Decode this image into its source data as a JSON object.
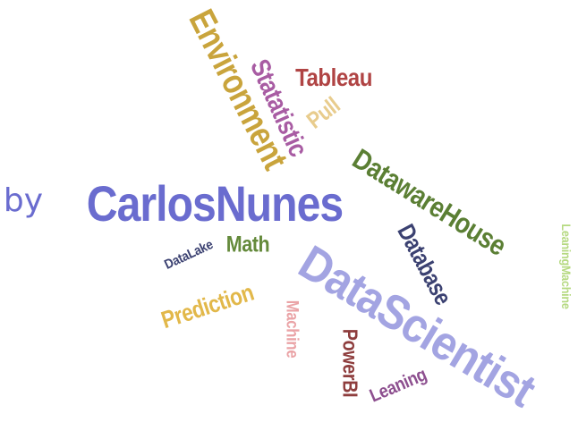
{
  "word_cloud": {
    "words": {
      "carlosnunes": {
        "text": "CarlosNunes",
        "color": "#6a6ccf"
      },
      "by": {
        "text": "by",
        "color": "#6a6ccf"
      },
      "datascientist": {
        "text": "DataScientist",
        "color": "#a3a4e2"
      },
      "environment": {
        "text": "Environment",
        "color": "#c9a43c"
      },
      "datawarehouse": {
        "text": "DatawareHouse",
        "color": "#5b7f34"
      },
      "statatistic": {
        "text": "Statatistic",
        "color": "#a85ca3"
      },
      "tableau": {
        "text": "Tableau",
        "color": "#b04444"
      },
      "pull": {
        "text": "Pull",
        "color": "#e8cc8d"
      },
      "database": {
        "text": "Database",
        "color": "#3b4171"
      },
      "math": {
        "text": "Math",
        "color": "#648a3b"
      },
      "datalake": {
        "text": "DataLake",
        "color": "#3b4171"
      },
      "prediction": {
        "text": "Prediction",
        "color": "#e2b84a"
      },
      "machine": {
        "text": "Machine",
        "color": "#eaa3a6"
      },
      "powerbi": {
        "text": "PowerBI",
        "color": "#8e3d3d"
      },
      "leaning": {
        "text": "Leaning",
        "color": "#8d4f8f"
      },
      "leaningmachine": {
        "text": "LeaningMachine",
        "color": "#b5d980"
      }
    }
  }
}
